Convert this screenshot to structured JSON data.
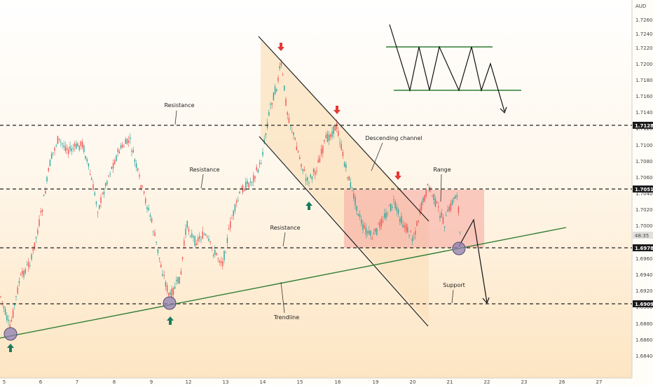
{
  "chart_data": {
    "type": "candlestick",
    "currency": "AUD",
    "price_ticks": [
      "1.72600",
      "1.72400",
      "1.72200",
      "1.72000",
      "1.71800",
      "1.71600",
      "1.71400",
      "1.71200",
      "1.71000",
      "1.70800",
      "1.70600",
      "1.70400",
      "1.70200",
      "1.70000",
      "1.69600",
      "1.69400",
      "1.69200",
      "1.69000",
      "1.68800",
      "1.68600",
      "1.68400"
    ],
    "date_ticks": [
      "5",
      "6",
      "7",
      "8",
      "9",
      "12",
      "13",
      "14",
      "15",
      "16",
      "19",
      "20",
      "21",
      "22",
      "23",
      "26",
      "27"
    ],
    "levels": [
      {
        "label": "Resistance",
        "price": "1.71289"
      },
      {
        "label": "Resistance",
        "price": "1.70511"
      },
      {
        "label": "Resistance",
        "price": "1.69780"
      },
      {
        "label": "Support",
        "price": "1.69098"
      }
    ],
    "countdown": "48:35",
    "annotations": [
      "Descending channel",
      "Range",
      "Trendline"
    ],
    "colors": {
      "up": "#26a69a",
      "down": "#ef5350",
      "trendline": "#2e7d32",
      "range_fill": "#f7b7b0",
      "channel_fill": "#fbe1bd",
      "arrow_down": "#e53935",
      "arrow_up": "#1b7a5a",
      "touch": "#8e7fb0"
    }
  }
}
